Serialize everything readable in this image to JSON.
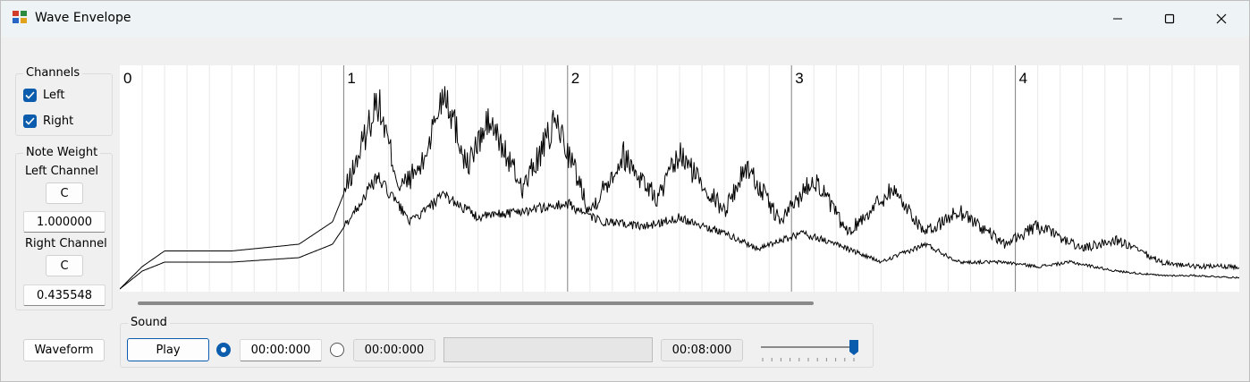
{
  "window": {
    "title": "Wave Envelope",
    "icons": {
      "app": "app-icon",
      "minimize": "minimize-icon",
      "maximize": "maximize-icon",
      "close": "close-icon"
    }
  },
  "channels": {
    "title": "Channels",
    "left_label": "Left",
    "left_checked": true,
    "right_label": "Right",
    "right_checked": true
  },
  "note_weight": {
    "title": "Note Weight",
    "left_channel_label": "Left Channel",
    "left_note": "C",
    "left_value": "1.000000",
    "right_channel_label": "Right Channel",
    "right_note": "C",
    "right_value": "0.435548"
  },
  "waveform_button": "Waveform",
  "plot": {
    "markers": [
      "0",
      "1",
      "2",
      "3",
      "4"
    ],
    "accent": "#0b5cad"
  },
  "chart_data": {
    "type": "line",
    "x_markers": [
      0,
      1,
      2,
      3,
      4
    ],
    "xlim": [
      0,
      5
    ],
    "series": [
      {
        "envelope": "upper",
        "points": [
          [
            0,
            0.0
          ],
          [
            0.1,
            0.1
          ],
          [
            0.2,
            0.17
          ],
          [
            0.5,
            0.17
          ],
          [
            0.8,
            0.2
          ],
          [
            0.95,
            0.3
          ],
          [
            1.05,
            0.55
          ],
          [
            1.15,
            0.85
          ],
          [
            1.25,
            0.45
          ],
          [
            1.35,
            0.55
          ],
          [
            1.45,
            0.9
          ],
          [
            1.55,
            0.55
          ],
          [
            1.65,
            0.75
          ],
          [
            1.8,
            0.45
          ],
          [
            1.95,
            0.75
          ],
          [
            2.1,
            0.35
          ],
          [
            2.25,
            0.6
          ],
          [
            2.4,
            0.4
          ],
          [
            2.5,
            0.6
          ],
          [
            2.7,
            0.35
          ],
          [
            2.8,
            0.55
          ],
          [
            2.95,
            0.3
          ],
          [
            3.1,
            0.5
          ],
          [
            3.25,
            0.25
          ],
          [
            3.45,
            0.45
          ],
          [
            3.6,
            0.25
          ],
          [
            3.75,
            0.35
          ],
          [
            3.95,
            0.2
          ],
          [
            4.1,
            0.28
          ],
          [
            4.3,
            0.18
          ],
          [
            4.45,
            0.22
          ],
          [
            4.65,
            0.12
          ],
          [
            4.8,
            0.1
          ],
          [
            5.0,
            0.1
          ]
        ]
      },
      {
        "envelope": "lower",
        "points": [
          [
            0,
            0.0
          ],
          [
            0.1,
            0.08
          ],
          [
            0.2,
            0.12
          ],
          [
            0.5,
            0.12
          ],
          [
            0.8,
            0.14
          ],
          [
            0.95,
            0.2
          ],
          [
            1.05,
            0.35
          ],
          [
            1.15,
            0.5
          ],
          [
            1.3,
            0.3
          ],
          [
            1.45,
            0.42
          ],
          [
            1.6,
            0.32
          ],
          [
            1.8,
            0.35
          ],
          [
            2.0,
            0.38
          ],
          [
            2.15,
            0.3
          ],
          [
            2.35,
            0.28
          ],
          [
            2.5,
            0.32
          ],
          [
            2.7,
            0.25
          ],
          [
            2.85,
            0.18
          ],
          [
            3.05,
            0.25
          ],
          [
            3.2,
            0.2
          ],
          [
            3.4,
            0.12
          ],
          [
            3.6,
            0.2
          ],
          [
            3.75,
            0.12
          ],
          [
            3.95,
            0.12
          ],
          [
            4.1,
            0.1
          ],
          [
            4.25,
            0.12
          ],
          [
            4.45,
            0.08
          ],
          [
            4.65,
            0.06
          ],
          [
            4.8,
            0.06
          ],
          [
            5.0,
            0.05
          ]
        ]
      }
    ]
  },
  "sound": {
    "title": "Sound",
    "play_label": "Play",
    "start_time": "00:00:000",
    "start_selected": true,
    "current_time": "00:00:000",
    "current_selected": false,
    "end_time": "00:08:000",
    "progress": 0.0,
    "slider_level": 1.0
  }
}
